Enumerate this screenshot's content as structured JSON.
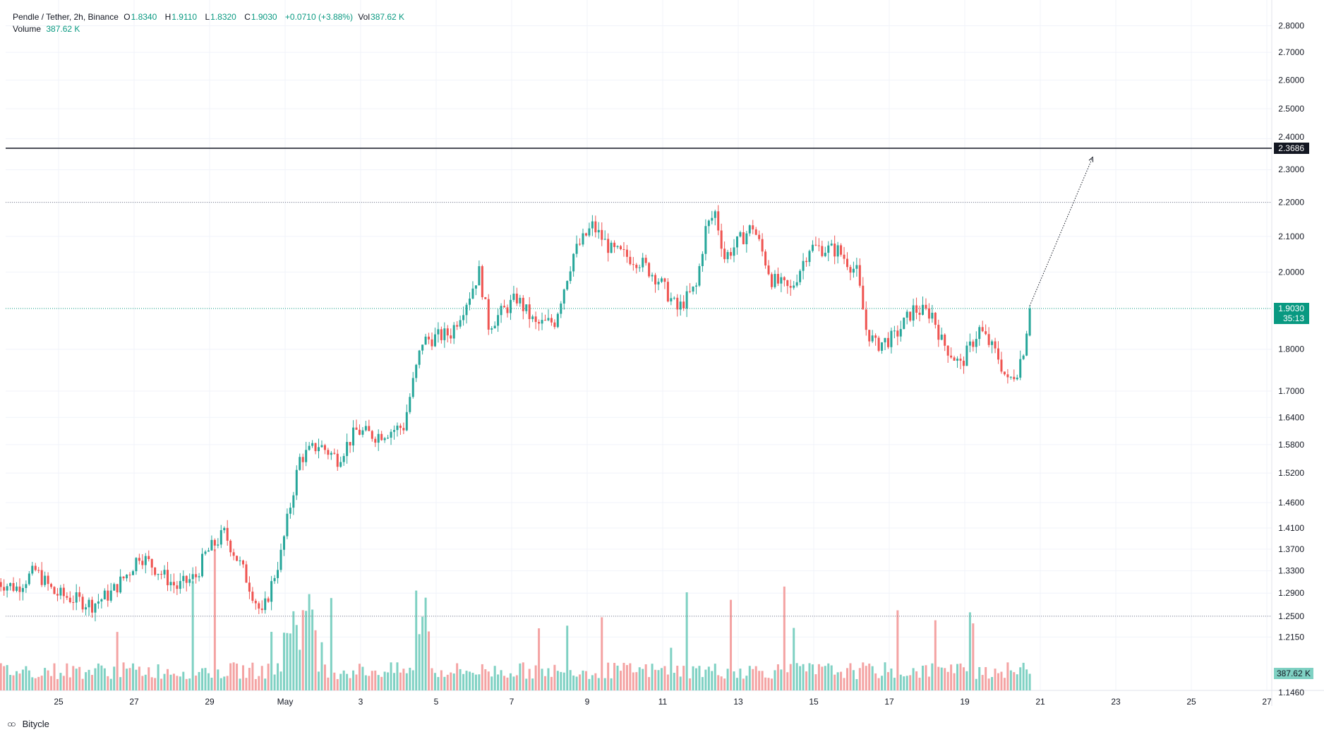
{
  "header": {
    "symbol": "Pendle / Tether, 2h, Binance",
    "open_label": "O",
    "open": "1.8340",
    "high_label": "H",
    "high": "1.9110",
    "low_label": "L",
    "low": "1.8320",
    "close_label": "C",
    "close": "1.9030",
    "change": "+0.0710 (+3.88%)",
    "vol_label": "Vol",
    "vol": "387.62 K",
    "volume_label": "Volume",
    "volume": "387.62 K"
  },
  "footer": {
    "brand": "Bitycle",
    "logo_icon": "bitycle-logo-icon"
  },
  "colors": {
    "up": "#26a69a",
    "down": "#ef5350",
    "vol_up": "#7fd1c3",
    "vol_down": "#f4a3a3",
    "grid": "#f0f3fa",
    "level": "#131722",
    "price_tag": "#089981"
  },
  "chart_data": {
    "type": "candlestick",
    "x_tick_labels": [
      "25",
      "27",
      "29",
      "May",
      "3",
      "5",
      "7",
      "9",
      "11",
      "13",
      "15",
      "17",
      "19",
      "21",
      "23",
      "25",
      "27"
    ],
    "y_tick_labels": [
      "2.8000",
      "2.7000",
      "2.6000",
      "2.5000",
      "2.4000",
      "2.3000",
      "2.2000",
      "2.1000",
      "2.0000",
      "1.8000",
      "1.7000",
      "1.6400",
      "1.5800",
      "1.5200",
      "1.4600",
      "1.4100",
      "1.3700",
      "1.3300",
      "1.2900",
      "1.2500",
      "1.2150",
      "1.1460"
    ],
    "y_scale": "log",
    "ylim": [
      1.146,
      2.8
    ],
    "horizontal_levels": [
      {
        "value": 2.3686,
        "label": "2.3686",
        "style": "solid"
      },
      {
        "value": 2.2,
        "style": "dotted"
      },
      {
        "value": 1.25,
        "style": "dotted"
      },
      {
        "value": 1.903,
        "label": "1.9030",
        "countdown": "35:13",
        "style": "dotted-green"
      }
    ],
    "projection_arrow": {
      "from": {
        "date": "May 20 20:00",
        "price": 1.91
      },
      "to": {
        "date": "May 22 12:00",
        "price": 2.34
      }
    },
    "volume_label": "387.62 K",
    "waypoints": [
      [
        "Apr 23 12:00",
        1.31
      ],
      [
        "Apr 24 00:00",
        1.3
      ],
      [
        "Apr 24 12:00",
        1.33
      ],
      [
        "Apr 25 00:00",
        1.29
      ],
      [
        "Apr 26 00:00",
        1.27
      ],
      [
        "Apr 26 12:00",
        1.29
      ],
      [
        "Apr 27 00:00",
        1.33
      ],
      [
        "Apr 27 06:00",
        1.36
      ],
      [
        "Apr 27 18:00",
        1.33
      ],
      [
        "Apr 28 06:00",
        1.3
      ],
      [
        "Apr 28 18:00",
        1.32
      ],
      [
        "Apr 29 00:00",
        1.36
      ],
      [
        "Apr 29 12:00",
        1.4
      ],
      [
        "Apr 30 00:00",
        1.33
      ],
      [
        "Apr 30 12:00",
        1.25
      ],
      [
        "May 1 00:00",
        1.36
      ],
      [
        "May 1 12:00",
        1.55
      ],
      [
        "May 2 00:00",
        1.58
      ],
      [
        "May 2 12:00",
        1.55
      ],
      [
        "May 3 00:00",
        1.61
      ],
      [
        "May 3 12:00",
        1.6
      ],
      [
        "May 4 06:00",
        1.62
      ],
      [
        "May 4 12:00",
        1.72
      ],
      [
        "May 4 18:00",
        1.82
      ],
      [
        "May 5 12:00",
        1.84
      ],
      [
        "May 6 00:00",
        1.94
      ],
      [
        "May 6 06:00",
        2.0
      ],
      [
        "May 6 12:00",
        1.86
      ],
      [
        "May 7 06:00",
        1.93
      ],
      [
        "May 7 18:00",
        1.86
      ],
      [
        "May 8 06:00",
        1.87
      ],
      [
        "May 8 18:00",
        2.05
      ],
      [
        "May 9 06:00",
        2.13
      ],
      [
        "May 9 18:00",
        2.06
      ],
      [
        "May 10 12:00",
        2.03
      ],
      [
        "May 11 00:00",
        1.98
      ],
      [
        "May 11 12:00",
        1.9
      ],
      [
        "May 12 00:00",
        1.96
      ],
      [
        "May 12 06:00",
        2.12
      ],
      [
        "May 12 12:00",
        2.17
      ],
      [
        "May 12 18:00",
        2.04
      ],
      [
        "May 13 12:00",
        2.13
      ],
      [
        "May 14 00:00",
        1.98
      ],
      [
        "May 14 12:00",
        1.95
      ],
      [
        "May 15 00:00",
        2.07
      ],
      [
        "May 15 18:00",
        2.06
      ],
      [
        "May 16 06:00",
        2.0
      ],
      [
        "May 16 12:00",
        1.85
      ],
      [
        "May 16 18:00",
        1.81
      ],
      [
        "May 17 06:00",
        1.83
      ],
      [
        "May 17 18:00",
        1.9
      ],
      [
        "May 18 06:00",
        1.89
      ],
      [
        "May 18 12:00",
        1.82
      ],
      [
        "May 19 00:00",
        1.76
      ],
      [
        "May 19 12:00",
        1.85
      ],
      [
        "May 20 00:00",
        1.78
      ],
      [
        "May 20 06:00",
        1.72
      ],
      [
        "May 20 12:00",
        1.75
      ],
      [
        "May 20 16:00",
        1.8
      ],
      [
        "May 20 20:00",
        1.903
      ]
    ]
  }
}
